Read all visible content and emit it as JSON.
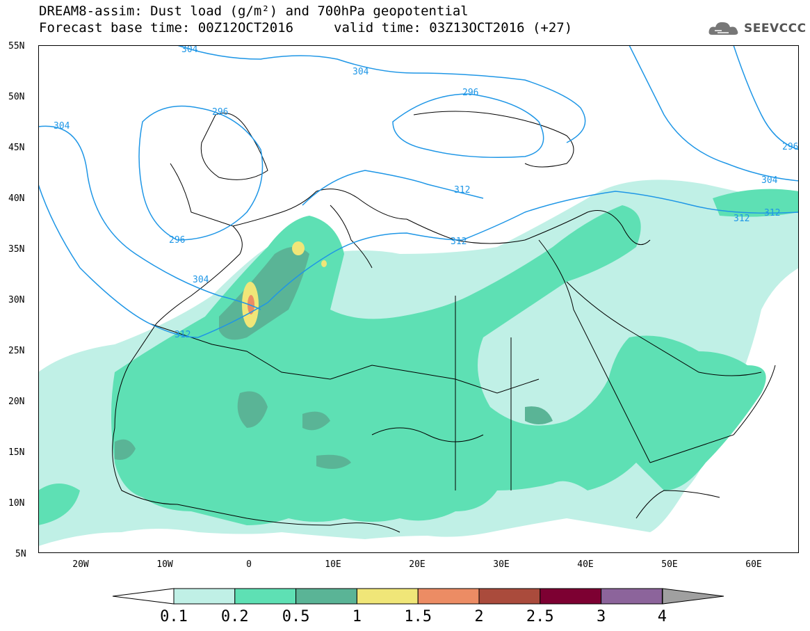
{
  "header": {
    "title_line1": "DREAM8-assim: Dust load (g/m²) and 700hPa geopotential",
    "title_line2": "Forecast base time: 00Z12OCT2016",
    "valid_time": "valid time: 03Z13OCT2016 (+27)",
    "logo": "SEEVCCC"
  },
  "axes": {
    "lat_labels": [
      "55N",
      "50N",
      "45N",
      "40N",
      "35N",
      "30N",
      "25N",
      "20N",
      "15N",
      "10N",
      "5N"
    ],
    "lon_labels": [
      "20W",
      "10W",
      "0",
      "10E",
      "20E",
      "30E",
      "40E",
      "50E",
      "60E"
    ]
  },
  "contour_labels": [
    "304",
    "296",
    "304",
    "296",
    "304",
    "296",
    "304",
    "312",
    "312",
    "312",
    "312",
    "296",
    "304",
    "312"
  ],
  "colorbar": {
    "labels": [
      "0.1",
      "0.2",
      "0.5",
      "1",
      "1.5",
      "2",
      "2.5",
      "3",
      "4"
    ],
    "colors": [
      "#c0f0e6",
      "#5ee0b4",
      "#5ab496",
      "#f0e678",
      "#ec8c64",
      "#aa4b3c",
      "#7d0032",
      "#8c649b",
      "#a0a0a0"
    ]
  }
}
